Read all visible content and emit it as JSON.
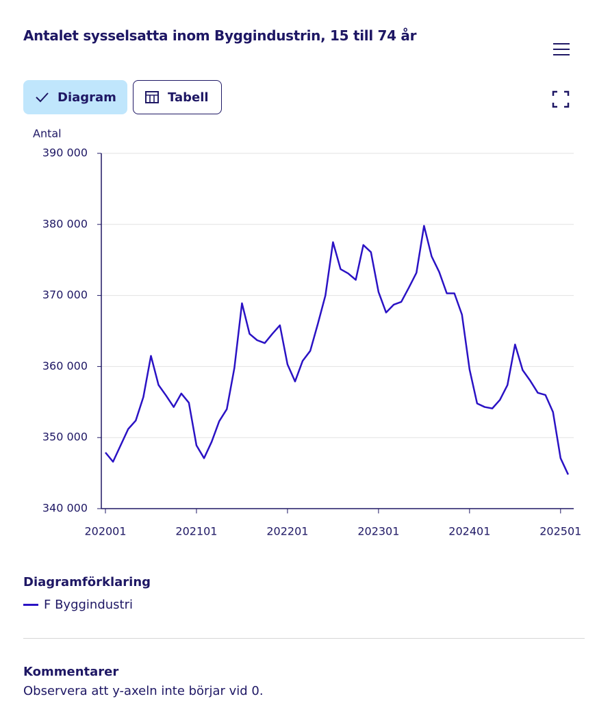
{
  "buttons": [
    "Diagram",
    "Tabell"
  ],
  "chart_data": {
    "type": "line",
    "title": "Antalet sysselsatta inom Byggindustrin, 15 till 74 år",
    "y_label": "Antal",
    "categories": [
      "202001",
      null,
      null,
      null,
      null,
      null,
      null,
      null,
      null,
      null,
      null,
      null,
      "202101",
      null,
      null,
      null,
      null,
      null,
      null,
      null,
      null,
      null,
      null,
      null,
      "202201",
      null,
      null,
      null,
      null,
      null,
      null,
      null,
      null,
      null,
      null,
      null,
      "202301",
      null,
      null,
      null,
      null,
      null,
      null,
      null,
      null,
      null,
      null,
      null,
      "202401",
      null,
      null,
      null,
      null,
      null,
      null,
      null,
      null,
      null,
      null,
      null,
      "202501",
      null
    ],
    "series": [
      {
        "name": "F Byggindustri",
        "color": "#2a12c4",
        "values": [
          347900,
          346600,
          348900,
          351200,
          352400,
          355700,
          361500,
          357400,
          355900,
          354300,
          356200,
          354900,
          348900,
          347100,
          349400,
          352300,
          354000,
          359800,
          368900,
          364600,
          363700,
          363300,
          364600,
          365800,
          360300,
          357900,
          360800,
          362200,
          366000,
          370000,
          377500,
          373700,
          373100,
          372200,
          377100,
          376100,
          370500,
          367600,
          368700,
          369100,
          371100,
          373200,
          379800,
          375500,
          373300,
          370300,
          370300,
          367300,
          359600,
          354800,
          354300,
          354100,
          355300,
          357400,
          363100,
          359500,
          358000,
          356300,
          356000,
          353600,
          347100,
          344800
        ]
      }
    ],
    "ylim": [
      340000,
      390000
    ],
    "yticks": [
      {
        "value": 340000,
        "label": "340 000"
      },
      {
        "value": 350000,
        "label": "350 000"
      },
      {
        "value": 360000,
        "label": "360 000"
      },
      {
        "value": 370000,
        "label": "370 000"
      },
      {
        "value": 380000,
        "label": "380 000"
      },
      {
        "value": 390000,
        "label": "390 000"
      }
    ],
    "grid": true,
    "legend_title": "Diagramförklaring"
  },
  "comments": {
    "title": "Kommentarer",
    "text": "Observera att y-axeln inte börjar vid 0."
  }
}
